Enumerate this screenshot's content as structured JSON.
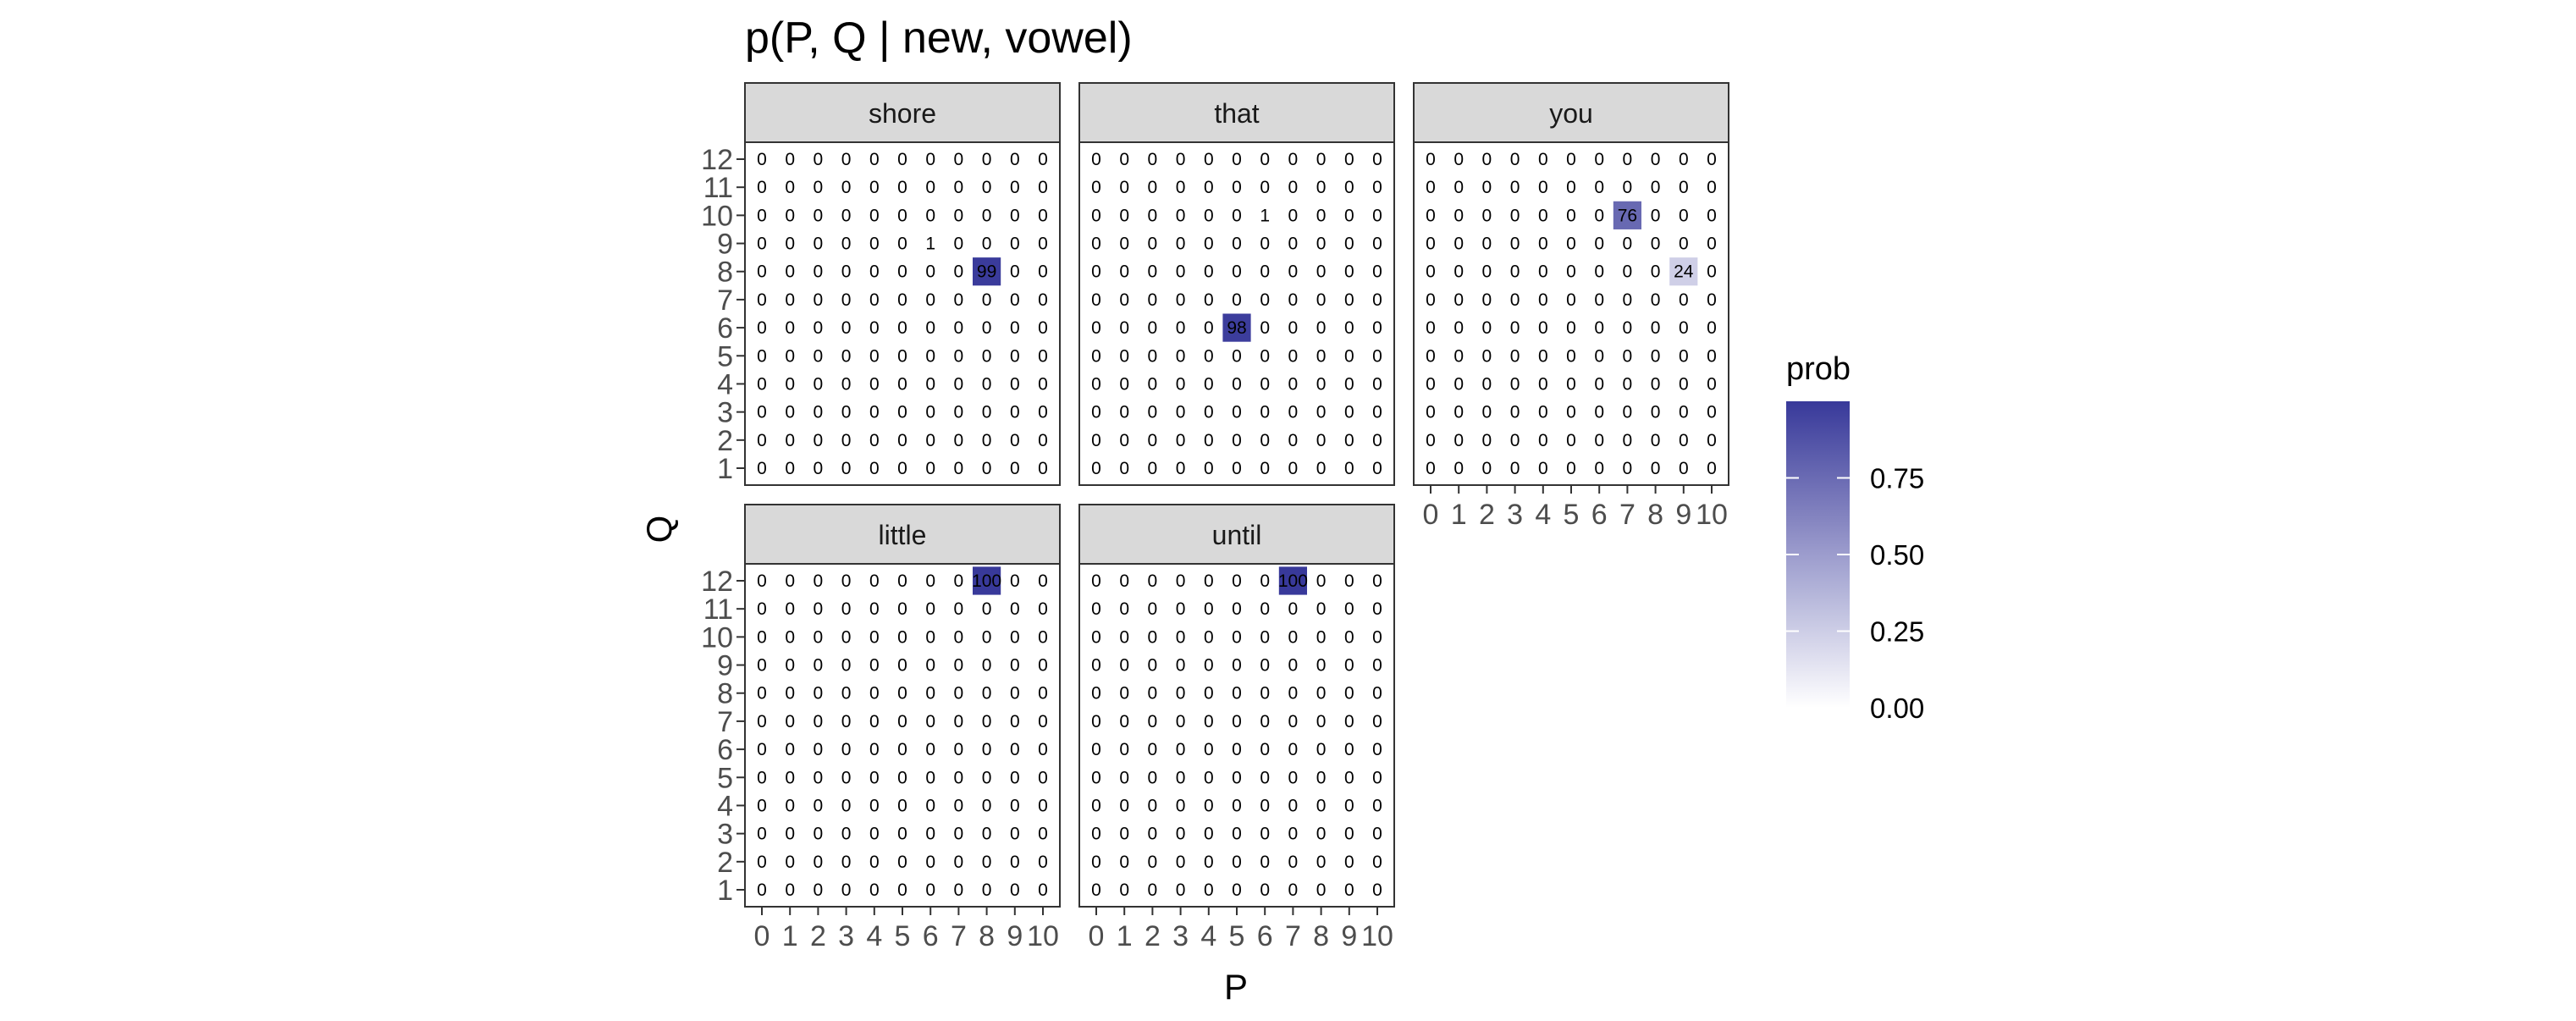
{
  "chart_data": {
    "type": "heatmap",
    "title": "p(P, Q | new, vowel)",
    "xlabel": "P",
    "ylabel": "Q",
    "x_ticks": [
      0,
      1,
      2,
      3,
      4,
      5,
      6,
      7,
      8,
      9,
      10
    ],
    "y_ticks": [
      1,
      2,
      3,
      4,
      5,
      6,
      7,
      8,
      9,
      10,
      11,
      12
    ],
    "grid": false,
    "cell_label_note": "cells show round(prob*100); blank/0 elsewhere",
    "legend": {
      "title": "prob",
      "placement": "right",
      "breaks": [
        0.0,
        0.25,
        0.5,
        0.75
      ],
      "break_labels": [
        "0.00",
        "0.25",
        "0.50",
        "0.75"
      ],
      "range": [
        0,
        1
      ],
      "low_color": "#ffffff",
      "high_color": "#38399a"
    },
    "panels": [
      {
        "name": "shore",
        "cells": [
          {
            "p": 8,
            "q": 8,
            "value": 99
          },
          {
            "p": 6,
            "q": 9,
            "value": 1
          }
        ]
      },
      {
        "name": "that",
        "cells": [
          {
            "p": 5,
            "q": 6,
            "value": 98
          },
          {
            "p": 6,
            "q": 10,
            "value": 1
          }
        ]
      },
      {
        "name": "you",
        "cells": [
          {
            "p": 7,
            "q": 10,
            "value": 76
          },
          {
            "p": 9,
            "q": 8,
            "value": 24
          }
        ]
      },
      {
        "name": "little",
        "cells": [
          {
            "p": 8,
            "q": 12,
            "value": 100
          }
        ]
      },
      {
        "name": "until",
        "cells": [
          {
            "p": 7,
            "q": 12,
            "value": 100
          }
        ]
      }
    ]
  },
  "colors": {
    "strip_fill": "#d9d9d9",
    "panel_border": "#333333",
    "text": "#000000",
    "tick_text": "#4d4d4d"
  }
}
